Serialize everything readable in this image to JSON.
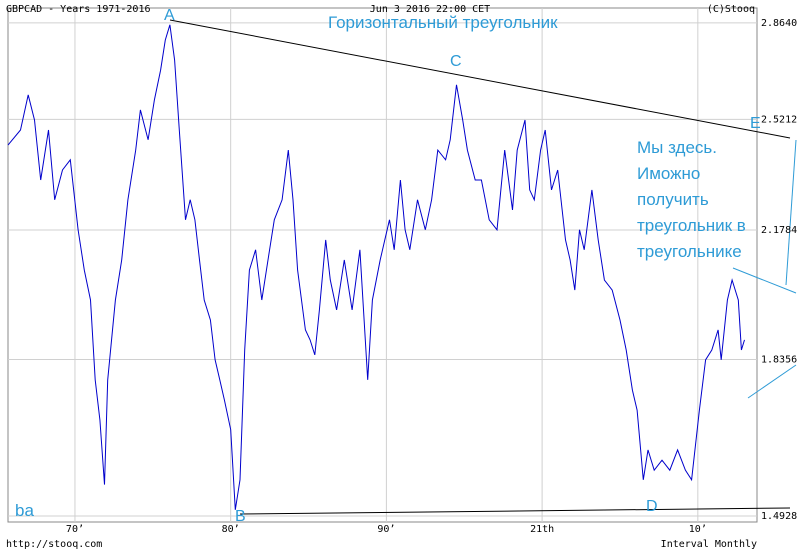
{
  "chart_data": {
    "type": "line",
    "title": "GBPCAD - Years 1971-2016",
    "timestamp": "Jun 3 2016 22:00 CET",
    "source": "(C)Stooq",
    "url": "http://stooq.com",
    "interval": "Interval Monthly",
    "log_y": true,
    "grid": true,
    "xlim": [
      1965.7,
      2013.8
    ],
    "xticks": [
      {
        "value": 1970,
        "label": "70’"
      },
      {
        "value": 1980,
        "label": "80’"
      },
      {
        "value": 1990,
        "label": "90’"
      },
      {
        "value": 2000,
        "label": "21th"
      },
      {
        "value": 2010,
        "label": "10’"
      }
    ],
    "ylim": [
      1.481,
      2.921
    ],
    "yticks": [
      1.4928,
      1.8356,
      2.1784,
      2.5212,
      {
        "value": 2.864,
        "label": "2.8640"
      }
    ],
    "x": [
      1965.7,
      1966.5,
      1967.0,
      1967.4,
      1967.8,
      1968.3,
      1968.7,
      1969.2,
      1969.7,
      1970.2,
      1970.6,
      1971.0,
      1971.3,
      1971.6,
      1971.9,
      1972.1,
      1972.6,
      1973.0,
      1973.4,
      1973.9,
      1974.2,
      1974.7,
      1975.1,
      1975.5,
      1975.8,
      1976.1,
      1976.4,
      1976.7,
      1977.1,
      1977.4,
      1977.7,
      1978.0,
      1978.3,
      1978.7,
      1979.0,
      1979.3,
      1979.6,
      1980.0,
      1980.3,
      1980.6,
      1980.9,
      1981.2,
      1981.6,
      1982.0,
      1982.4,
      1982.8,
      1983.3,
      1983.7,
      1984.0,
      1984.3,
      1984.8,
      1985.1,
      1985.4,
      1985.7,
      1986.1,
      1986.4,
      1986.8,
      1987.3,
      1987.8,
      1988.3,
      1988.8,
      1989.1,
      1989.6,
      1989.9,
      1990.2,
      1990.5,
      1990.9,
      1991.2,
      1991.5,
      1992.0,
      1992.5,
      1992.9,
      1993.3,
      1993.8,
      1994.1,
      1994.5,
      1994.9,
      1995.2,
      1995.7,
      1996.1,
      1996.6,
      1997.1,
      1997.6,
      1998.1,
      1998.4,
      1998.9,
      1999.2,
      1999.5,
      1999.9,
      2000.2,
      2000.6,
      2001.0,
      2001.5,
      2001.8,
      2002.1,
      2002.4,
      2002.7,
      2003.2,
      2003.6,
      2004.0,
      2004.5,
      2005.0,
      2005.4,
      2005.8,
      2006.1,
      2006.5,
      2006.8,
      2007.2,
      2007.7,
      2008.2,
      2008.7,
      2009.2,
      2009.6,
      2010.1,
      2010.5,
      2010.9,
      2011.3,
      2011.5,
      2011.9,
      2012.2,
      2012.6,
      2012.8,
      2013.0
    ],
    "series": [
      {
        "name": "GBPCAD",
        "color": "#0000cc",
        "values": [
          2.437,
          2.486,
          2.604,
          2.519,
          2.327,
          2.486,
          2.267,
          2.358,
          2.39,
          2.179,
          2.066,
          1.986,
          1.787,
          1.695,
          1.556,
          1.787,
          1.986,
          2.094,
          2.267,
          2.421,
          2.553,
          2.454,
          2.587,
          2.691,
          2.8,
          2.857,
          2.727,
          2.486,
          2.208,
          2.267,
          2.208,
          2.094,
          1.986,
          1.934,
          1.835,
          1.787,
          1.74,
          1.673,
          1.505,
          1.566,
          1.859,
          2.066,
          2.122,
          1.986,
          2.094,
          2.208,
          2.267,
          2.421,
          2.267,
          2.066,
          1.909,
          1.884,
          1.847,
          1.96,
          2.15,
          2.039,
          1.96,
          2.094,
          1.96,
          2.122,
          1.787,
          1.986,
          2.094,
          2.15,
          2.208,
          2.122,
          2.327,
          2.179,
          2.122,
          2.267,
          2.179,
          2.267,
          2.421,
          2.39,
          2.454,
          2.639,
          2.519,
          2.421,
          2.327,
          2.327,
          2.208,
          2.179,
          2.421,
          2.237,
          2.421,
          2.519,
          2.297,
          2.267,
          2.421,
          2.486,
          2.297,
          2.358,
          2.15,
          2.094,
          2.012,
          2.179,
          2.122,
          2.297,
          2.15,
          2.039,
          2.012,
          1.934,
          1.859,
          1.763,
          1.717,
          1.566,
          1.629,
          1.586,
          1.607,
          1.586,
          1.629,
          1.586,
          1.566,
          1.717,
          1.835,
          1.859,
          1.909,
          1.835,
          1.986,
          2.039,
          1.986,
          1.859,
          1.884
        ]
      }
    ],
    "annotations": {
      "pattern_title": "Горизонтальный треугольник",
      "a": "A",
      "b": "B",
      "c": "C",
      "d": "D",
      "e": "E",
      "corner": "ba",
      "note": [
        "Мы здесь.",
        "Иможно",
        "получить",
        "треугольник в",
        "треугольнике"
      ]
    }
  }
}
